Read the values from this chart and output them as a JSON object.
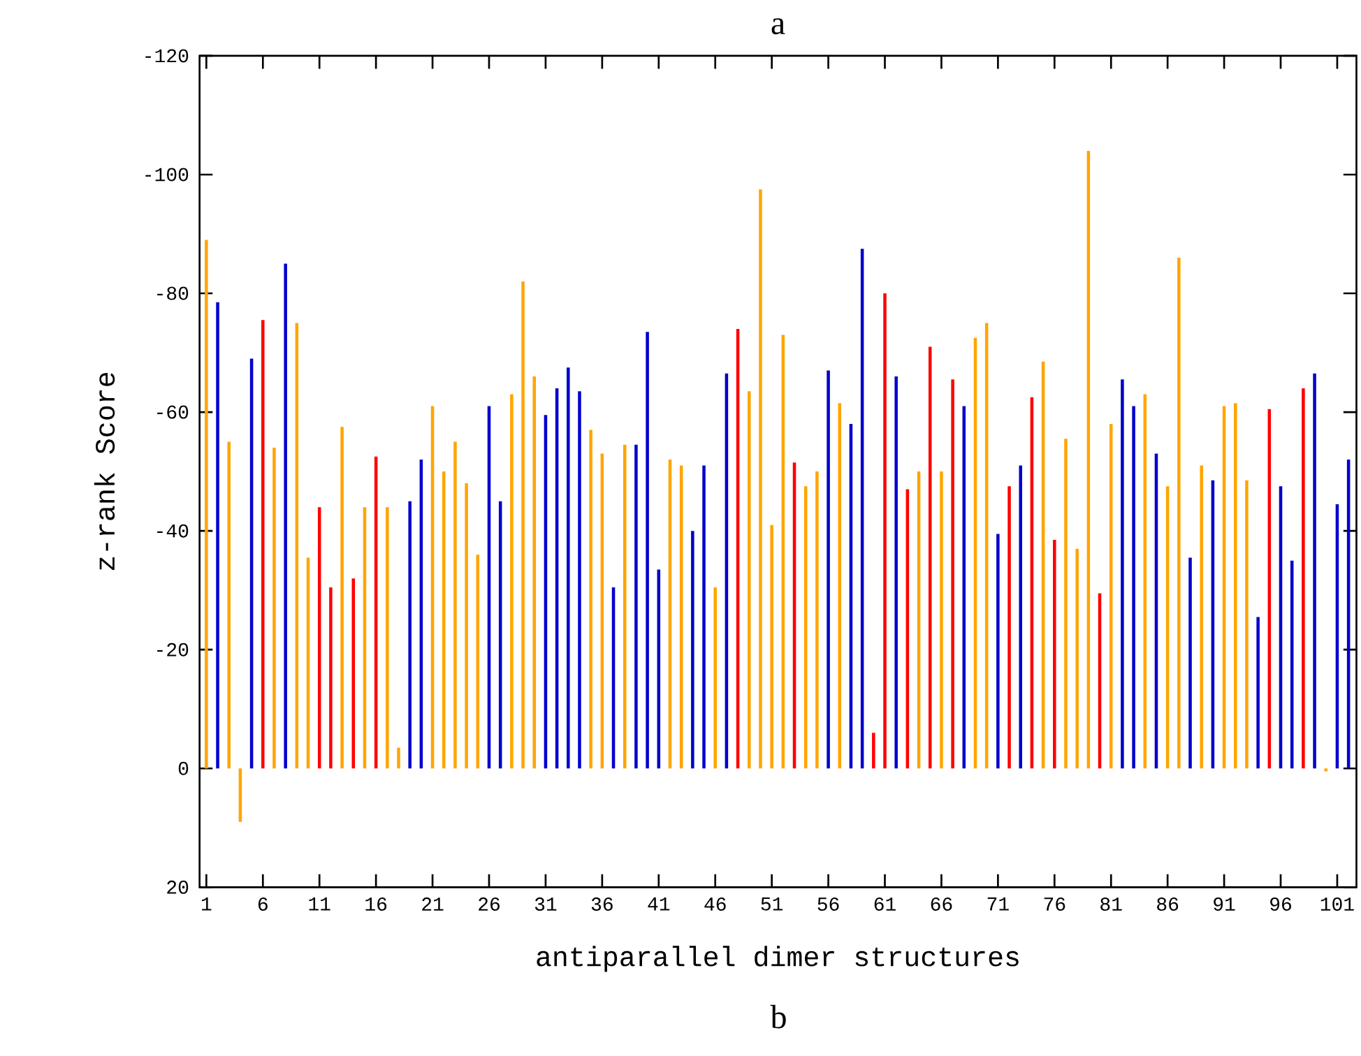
{
  "chart_data": {
    "type": "bar",
    "title": "a",
    "xlabel": "antiparallel dimer structures",
    "ylabel": "z-rank Score",
    "annotations": [
      "b"
    ],
    "x": [
      1,
      2,
      3,
      4,
      5,
      6,
      7,
      8,
      9,
      10,
      11,
      12,
      13,
      14,
      15,
      16,
      17,
      18,
      19,
      20,
      21,
      22,
      23,
      24,
      25,
      26,
      27,
      28,
      29,
      30,
      31,
      32,
      33,
      34,
      35,
      36,
      37,
      38,
      39,
      40,
      41,
      42,
      43,
      44,
      45,
      46,
      47,
      48,
      49,
      50,
      51,
      52,
      53,
      54,
      55,
      56,
      57,
      58,
      59,
      60,
      61,
      62,
      63,
      64,
      65,
      66,
      67,
      68,
      69,
      70,
      71,
      72,
      73,
      74,
      75,
      76,
      77,
      78,
      79,
      80,
      81,
      82,
      83,
      84,
      85,
      86,
      87,
      88,
      89,
      90,
      91,
      92,
      93,
      94,
      95,
      96,
      97,
      98,
      99,
      100,
      101,
      102
    ],
    "values": [
      -89,
      -78.5,
      -55,
      9,
      -69,
      -75.5,
      -54,
      -85,
      -75,
      -35.5,
      -44,
      -30.5,
      -57.5,
      -32,
      -44,
      -52.5,
      -44,
      -3.5,
      -45,
      -52,
      -61,
      -50,
      -55,
      -48,
      -36,
      -61,
      -45,
      -63,
      -82,
      -66,
      -59.5,
      -64,
      -67.5,
      -63.5,
      -57,
      -53,
      -30.5,
      -54.5,
      -54.5,
      -73.5,
      -33.5,
      -52,
      -51,
      -40,
      -51,
      -30.5,
      -66.5,
      -74,
      -63.5,
      -97.5,
      -41,
      -73,
      -51.5,
      -47.5,
      -50,
      -67,
      -61.5,
      -58,
      -87.5,
      -6,
      -80,
      -66,
      -47,
      -50,
      -71,
      -50,
      -65.5,
      -61,
      -72.5,
      -75,
      -39.5,
      -47.5,
      -51,
      -62.5,
      -68.5,
      -38.5,
      -55.5,
      -37,
      -104,
      -29.5,
      -58,
      -65.5,
      -61,
      -63,
      -53,
      -47.5,
      -86,
      -35.5,
      -51,
      -48.5,
      -61,
      -61.5,
      -48.5,
      -25.5,
      -60.5,
      -47.5,
      -35,
      -64,
      -66.5,
      0.5,
      -44.5,
      -52
    ],
    "colors": [
      "#ffa500",
      "#0000cc",
      "#ffa500",
      "#ffa500",
      "#0000cc",
      "#ff0000",
      "#ffa500",
      "#0000cc",
      "#ffa500",
      "#ffa500",
      "#ff0000",
      "#ff0000",
      "#ffa500",
      "#ff0000",
      "#ffa500",
      "#ff0000",
      "#ffa500",
      "#ffa500",
      "#0000cc",
      "#0000cc",
      "#ffa500",
      "#ffa500",
      "#ffa500",
      "#ffa500",
      "#ffa500",
      "#0000cc",
      "#0000cc",
      "#ffa500",
      "#ffa500",
      "#ffa500",
      "#0000cc",
      "#0000cc",
      "#0000cc",
      "#0000cc",
      "#ffa500",
      "#ffa500",
      "#0000cc",
      "#ffa500",
      "#0000cc",
      "#0000cc",
      "#0000cc",
      "#ffa500",
      "#ffa500",
      "#0000cc",
      "#0000cc",
      "#ffa500",
      "#0000cc",
      "#ff0000",
      "#ffa500",
      "#ffa500",
      "#ffa500",
      "#ffa500",
      "#ff0000",
      "#ffa500",
      "#ffa500",
      "#0000cc",
      "#ffa500",
      "#0000cc",
      "#0000cc",
      "#ff0000",
      "#ff0000",
      "#0000cc",
      "#ff0000",
      "#ffa500",
      "#ff0000",
      "#ffa500",
      "#ff0000",
      "#0000cc",
      "#ffa500",
      "#ffa500",
      "#0000cc",
      "#ff0000",
      "#0000cc",
      "#ff0000",
      "#ffa500",
      "#ff0000",
      "#ffa500",
      "#ffa500",
      "#ffa500",
      "#ff0000",
      "#ffa500",
      "#0000cc",
      "#0000cc",
      "#ffa500",
      "#0000cc",
      "#ffa500",
      "#ffa500",
      "#0000cc",
      "#ffa500",
      "#0000cc",
      "#ffa500",
      "#ffa500",
      "#ffa500",
      "#0000cc",
      "#ff0000",
      "#0000cc",
      "#0000cc",
      "#ff0000",
      "#0000cc",
      "#ffa500",
      "#0000cc",
      "#0000cc"
    ],
    "xlim": [
      0.4,
      102.7
    ],
    "ylim": [
      20,
      -120
    ],
    "xticks": [
      1,
      6,
      11,
      16,
      21,
      26,
      31,
      36,
      41,
      46,
      51,
      56,
      61,
      66,
      71,
      76,
      81,
      86,
      91,
      96,
      101
    ],
    "yticks": [
      20,
      0,
      -20,
      -40,
      -60,
      -80,
      -100,
      -120
    ]
  }
}
